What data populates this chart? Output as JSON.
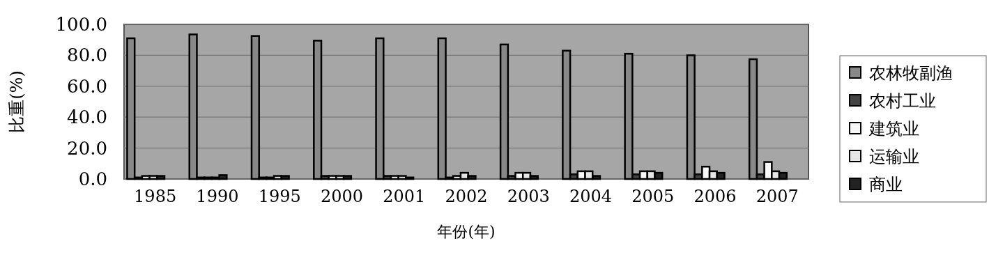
{
  "chart_data": {
    "type": "bar",
    "xlabel": "年份(年)",
    "ylabel": "比重(%)",
    "categories": [
      "1985",
      "1990",
      "1995",
      "2000",
      "2001",
      "2002",
      "2003",
      "2004",
      "2005",
      "2006",
      "2007"
    ],
    "series": [
      {
        "name": "农林牧副渔",
        "color": "#888888",
        "values": [
          91,
          93.5,
          92.5,
          89.5,
          91,
          91,
          87,
          83,
          81,
          80,
          77.5
        ]
      },
      {
        "name": "农村工业",
        "color": "#444444",
        "values": [
          1,
          1,
          1,
          2,
          2,
          1,
          2,
          3,
          3,
          3,
          3
        ]
      },
      {
        "name": "建筑业",
        "color": "#f8f8f8",
        "values": [
          2,
          1,
          1,
          2,
          2,
          2,
          4,
          5,
          5,
          8,
          11
        ]
      },
      {
        "name": "运输业",
        "color": "#e6e6e6",
        "values": [
          2,
          1,
          2,
          2,
          2,
          4,
          4,
          5,
          5,
          5,
          5
        ]
      },
      {
        "name": "商业",
        "color": "#222222",
        "values": [
          2,
          2.5,
          2,
          2,
          1,
          2,
          2,
          2,
          4,
          4,
          4
        ]
      }
    ],
    "ylim": [
      0,
      100
    ],
    "yticks": [
      {
        "value": 0,
        "label": "0.0"
      },
      {
        "value": 20,
        "label": "20.0"
      },
      {
        "value": 40,
        "label": "40.0"
      },
      {
        "value": 60,
        "label": "60.0"
      },
      {
        "value": 80,
        "label": "80.0"
      },
      {
        "value": 100,
        "label": "100.0"
      }
    ],
    "grid": "y",
    "legend": "right"
  }
}
